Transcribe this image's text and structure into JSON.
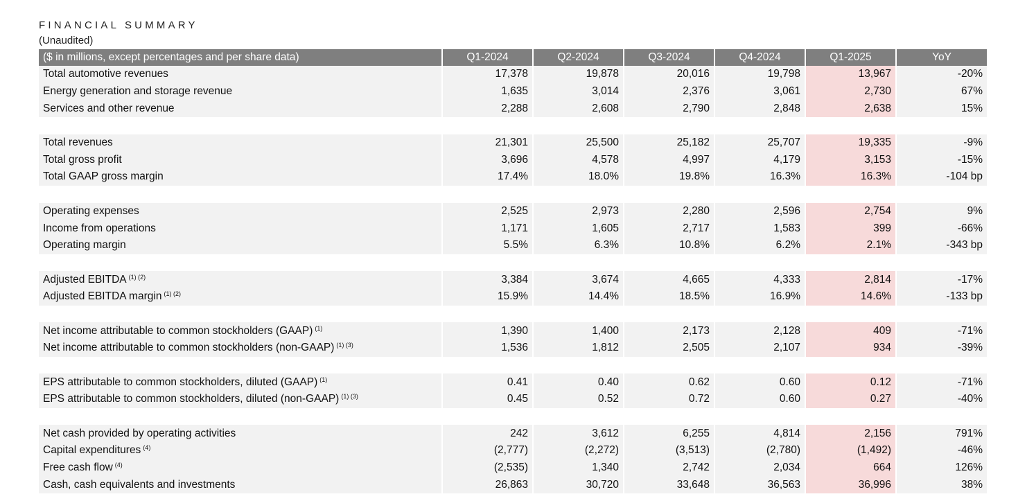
{
  "title": "FINANCIAL SUMMARY",
  "subtitle": "(Unaudited)",
  "headers": [
    "($ in millions, except percentages and per share data)",
    "Q1-2024",
    "Q2-2024",
    "Q3-2024",
    "Q4-2024",
    "Q1-2025",
    "YoY"
  ],
  "highlight_color": "#f7dada",
  "header_color": "#7f7f7f",
  "groups": [
    [
      {
        "label": "Total automotive revenues",
        "sup": "",
        "values": [
          "17,378",
          "19,878",
          "20,016",
          "19,798",
          "13,967",
          "-20%"
        ]
      },
      {
        "label": "Energy generation and storage revenue",
        "sup": "",
        "values": [
          "1,635",
          "3,014",
          "2,376",
          "3,061",
          "2,730",
          "67%"
        ]
      },
      {
        "label": "Services and other revenue",
        "sup": "",
        "values": [
          "2,288",
          "2,608",
          "2,790",
          "2,848",
          "2,638",
          "15%"
        ]
      }
    ],
    [
      {
        "label": "Total revenues",
        "sup": "",
        "values": [
          "21,301",
          "25,500",
          "25,182",
          "25,707",
          "19,335",
          "-9%"
        ]
      },
      {
        "label": "Total gross profit",
        "sup": "",
        "values": [
          "3,696",
          "4,578",
          "4,997",
          "4,179",
          "3,153",
          "-15%"
        ]
      },
      {
        "label": "Total GAAP gross margin",
        "sup": "",
        "values": [
          "17.4%",
          "18.0%",
          "19.8%",
          "16.3%",
          "16.3%",
          "-104 bp"
        ]
      }
    ],
    [
      {
        "label": "Operating expenses",
        "sup": "",
        "values": [
          "2,525",
          "2,973",
          "2,280",
          "2,596",
          "2,754",
          "9%"
        ]
      },
      {
        "label": "Income from operations",
        "sup": "",
        "values": [
          "1,171",
          "1,605",
          "2,717",
          "1,583",
          "399",
          "-66%"
        ]
      },
      {
        "label": "Operating margin",
        "sup": "",
        "values": [
          "5.5%",
          "6.3%",
          "10.8%",
          "6.2%",
          "2.1%",
          "-343 bp"
        ]
      }
    ],
    [
      {
        "label": "Adjusted EBITDA",
        "sup": "(1) (2)",
        "values": [
          "3,384",
          "3,674",
          "4,665",
          "4,333",
          "2,814",
          "-17%"
        ]
      },
      {
        "label": "Adjusted EBITDA margin",
        "sup": "(1) (2)",
        "values": [
          "15.9%",
          "14.4%",
          "18.5%",
          "16.9%",
          "14.6%",
          "-133 bp"
        ]
      }
    ],
    [
      {
        "label": "Net income attributable to common stockholders (GAAP)",
        "sup": "(1)",
        "values": [
          "1,390",
          "1,400",
          "2,173",
          "2,128",
          "409",
          "-71%"
        ]
      },
      {
        "label": "Net income attributable to common stockholders (non-GAAP)",
        "sup": "(1) (3)",
        "values": [
          "1,536",
          "1,812",
          "2,505",
          "2,107",
          "934",
          "-39%"
        ]
      }
    ],
    [
      {
        "label": "EPS attributable to common stockholders, diluted (GAAP)",
        "sup": "(1)",
        "values": [
          "0.41",
          "0.40",
          "0.62",
          "0.60",
          "0.12",
          "-71%"
        ]
      },
      {
        "label": "EPS attributable to common stockholders, diluted (non-GAAP)",
        "sup": "(1) (3)",
        "values": [
          "0.45",
          "0.52",
          "0.72",
          "0.60",
          "0.27",
          "-40%"
        ]
      }
    ],
    [
      {
        "label": "Net cash provided by operating activities",
        "sup": "",
        "values": [
          "242",
          "3,612",
          "6,255",
          "4,814",
          "2,156",
          "791%"
        ]
      },
      {
        "label": "Capital expenditures",
        "sup": "(4)",
        "values": [
          "(2,777)",
          "(2,272)",
          "(3,513)",
          "(2,780)",
          "(1,492)",
          "-46%"
        ]
      },
      {
        "label": "Free cash flow",
        "sup": "(4)",
        "values": [
          "(2,535)",
          "1,340",
          "2,742",
          "2,034",
          "664",
          "126%"
        ]
      },
      {
        "label": "Cash, cash equivalents and investments",
        "sup": "",
        "values": [
          "26,863",
          "30,720",
          "33,648",
          "36,563",
          "36,996",
          "38%"
        ]
      }
    ]
  ]
}
